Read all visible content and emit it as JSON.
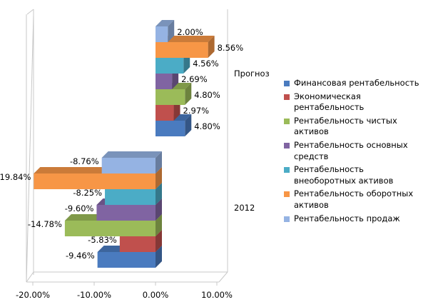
{
  "chart_data": {
    "type": "bar",
    "orientation": "horizontal",
    "categories": [
      "2012",
      "Прогноз"
    ],
    "series": [
      {
        "name": "Финансовая рентабельность",
        "color": "#4a7bbf",
        "values": [
          -9.46,
          4.8
        ],
        "labels": [
          "-9.46%",
          "4.80%"
        ]
      },
      {
        "name": "Экономическая рентабельность",
        "color": "#c0504d",
        "values": [
          -5.83,
          2.97
        ],
        "labels": [
          "-5.83%",
          "2.97%"
        ]
      },
      {
        "name": "Рентабельность чистых активов",
        "color": "#9bbb59",
        "values": [
          -14.78,
          4.8
        ],
        "labels": [
          "-14.78%",
          "4.80%"
        ]
      },
      {
        "name": "Рентабельность основных средств",
        "color": "#8064a2",
        "values": [
          -9.6,
          2.69
        ],
        "labels": [
          "-9.60%",
          "2.69%"
        ]
      },
      {
        "name": "Рентабельность внеоборотных активов",
        "color": "#4bacc6",
        "values": [
          -8.25,
          4.56
        ],
        "labels": [
          "-8.25%",
          "4.56%"
        ]
      },
      {
        "name": "Рентабельность оборотных активов",
        "color": "#f79646",
        "values": [
          -19.84,
          8.56
        ],
        "labels": [
          "-19.84%",
          "8.56%"
        ]
      },
      {
        "name": "Рентабельность продаж",
        "color": "#95b3e3",
        "values": [
          -8.76,
          2.0
        ],
        "labels": [
          "-8.76%",
          "2.00%"
        ]
      }
    ],
    "xlim": [
      -20,
      10
    ],
    "x_ticks": [
      "-20.00%",
      "-10.00%",
      "0.00%",
      "10.00%"
    ],
    "legend_position": "right",
    "grid": false
  }
}
